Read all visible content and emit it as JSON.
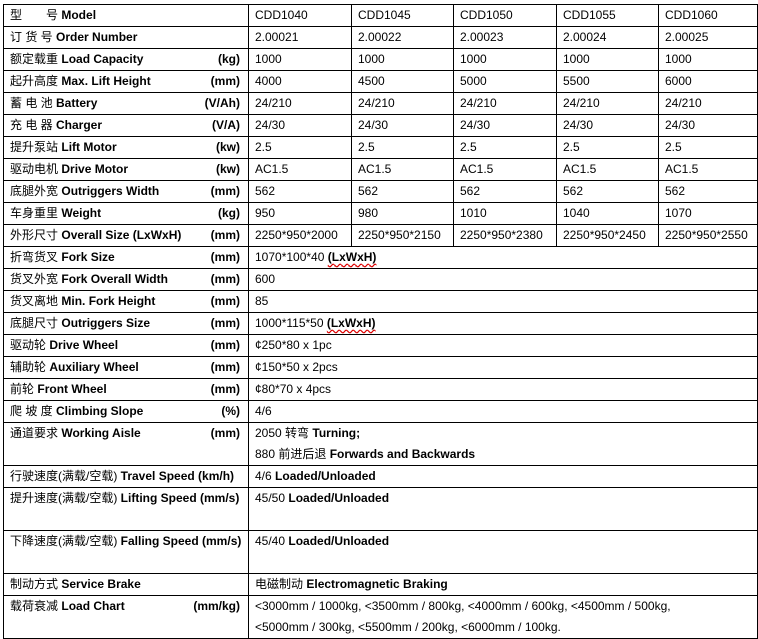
{
  "models": [
    "CDD1040",
    "CDD1045",
    "CDD1050",
    "CDD1055",
    "CDD1060"
  ],
  "header": {
    "cn": "型　　号",
    "en": "Model"
  },
  "rows_multi": [
    {
      "cn": "订 货 号",
      "en": "Order Number",
      "unit": "",
      "values": [
        "2.00021",
        "2.00022",
        "2.00023",
        "2.00024",
        "2.00025"
      ]
    },
    {
      "cn": "额定载重",
      "en": "Load Capacity",
      "unit": "(kg)",
      "values": [
        "1000",
        "1000",
        "1000",
        "1000",
        "1000"
      ]
    },
    {
      "cn": "起升高度",
      "en": "Max. Lift Height",
      "unit": "(mm)",
      "values": [
        "4000",
        "4500",
        "5000",
        "5500",
        "6000"
      ]
    },
    {
      "cn": "蓄 电 池",
      "en": "Battery",
      "unit": "(V/Ah)",
      "values": [
        "24/210",
        "24/210",
        "24/210",
        "24/210",
        "24/210"
      ]
    },
    {
      "cn": "充 电 器",
      "en": "Charger",
      "unit": "(V/A)",
      "values": [
        "24/30",
        "24/30",
        "24/30",
        "24/30",
        "24/30"
      ]
    },
    {
      "cn": "提升泵站",
      "en": "Lift Motor",
      "unit": "(kw)",
      "values": [
        "2.5",
        "2.5",
        "2.5",
        "2.5",
        "2.5"
      ]
    },
    {
      "cn": "驱动电机",
      "en": "Drive Motor",
      "unit": "(kw)",
      "values": [
        "AC1.5",
        "AC1.5",
        "AC1.5",
        "AC1.5",
        "AC1.5"
      ]
    },
    {
      "cn": "底腿外宽",
      "en": "Outriggers Width",
      "unit": "(mm)",
      "values": [
        "562",
        "562",
        "562",
        "562",
        "562"
      ]
    },
    {
      "cn": "车身重里",
      "en": "Weight",
      "unit": "(kg)",
      "values": [
        "950",
        "980",
        "1010",
        "1040",
        "1070"
      ]
    },
    {
      "cn": "外形尺寸",
      "en": "Overall Size (LxWxH)",
      "unit": "(mm)",
      "values": [
        "2250*950*2000",
        "2250*950*2150",
        "2250*950*2380",
        "2250*950*2450",
        "2250*950*2550"
      ]
    }
  ],
  "rows_single": [
    {
      "cn": "折弯货叉",
      "en": "Fork Size",
      "unit": "(mm)",
      "value": "1070*100*40",
      "bold": "(LxWxH)"
    },
    {
      "cn": "货叉外宽",
      "en": "Fork Overall Width",
      "unit": "(mm)",
      "value": "600",
      "bold": ""
    },
    {
      "cn": "货叉离地",
      "en": "Min. Fork Height",
      "unit": "(mm)",
      "value": "85",
      "bold": ""
    },
    {
      "cn": "底腿尺寸",
      "en": "Outriggers Size",
      "unit": "(mm)",
      "value": "1000*115*50",
      "bold": "(LxWxH)"
    },
    {
      "cn": "驱动轮",
      "en": "Drive Wheel",
      "unit": "(mm)",
      "value": "¢250*80 x 1pc",
      "bold": ""
    },
    {
      "cn": "辅助轮",
      "en": "Auxiliary Wheel",
      "unit": "(mm)",
      "value": "¢150*50 x 2pcs",
      "bold": ""
    },
    {
      "cn": "前轮",
      "en": "Front Wheel",
      "unit": "(mm)",
      "value": "¢80*70 x 4pcs",
      "bold": ""
    },
    {
      "cn": "爬 坡 度",
      "en": "Climbing Slope",
      "unit": "(%)",
      "value": "4/6",
      "bold": ""
    }
  ],
  "aisle": {
    "cn": "通道要求",
    "en": "Working Aisle",
    "unit": "(mm)",
    "line1": "2050 转弯",
    "line1_bold": "Turning;",
    "line2": "880 前进后退",
    "line2_bold": "Forwards and Backwards"
  },
  "travel": {
    "cn": "行驶速度(满载/空载)",
    "en": "Travel Speed (km/h)",
    "value": "4/6",
    "bold": "Loaded/Unloaded"
  },
  "lifting": {
    "cn": "提升速度(满载/空载)",
    "en": "Lifting Speed (mm/s)",
    "value": "45/50",
    "bold": "Loaded/Unloaded"
  },
  "falling": {
    "cn": "下降速度(满载/空载)",
    "en": "Falling Speed (mm/s)",
    "value": "45/40",
    "bold": "Loaded/Unloaded"
  },
  "brake": {
    "cn": "制动方式",
    "en": "Service Brake",
    "value": "电磁制动",
    "bold": "Electromagnetic Braking"
  },
  "load_chart": {
    "cn": "载荷衰减",
    "en": "Load Chart",
    "unit": "(mm/kg)",
    "line1": "<3000mm / 1000kg, <3500mm / 800kg, <4000mm / 600kg, <4500mm / 500kg,",
    "line2": "<5000mm / 300kg, <5500mm / 200kg, <6000mm / 100kg."
  }
}
